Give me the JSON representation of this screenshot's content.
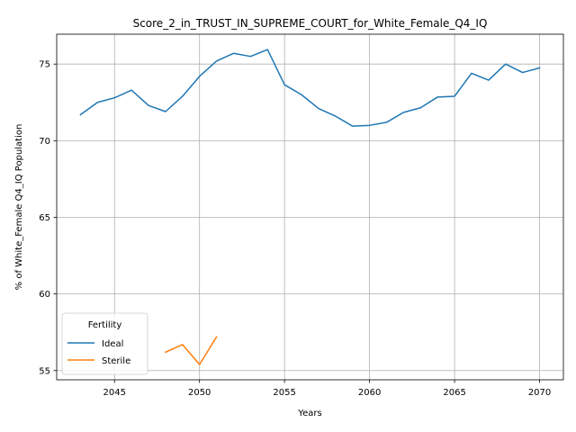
{
  "chart_data": {
    "type": "line",
    "title": "Score_2_in_TRUST_IN_SUPREME_COURT_for_White_Female_Q4_IQ",
    "xlabel": "Years",
    "ylabel": "% of White_Female Q4_IQ Population",
    "xlim": [
      2041.6,
      2071.4
    ],
    "ylim": [
      54.4,
      76.95
    ],
    "xticks": [
      2045,
      2050,
      2055,
      2060,
      2065,
      2070
    ],
    "yticks": [
      55,
      60,
      65,
      70,
      75
    ],
    "grid": true,
    "legend": {
      "title": "Fertility",
      "placement": "lower-left"
    },
    "series": [
      {
        "name": "Ideal",
        "color": "#1f77b4",
        "x": [
          2043,
          2044,
          2045,
          2046,
          2047,
          2048,
          2049,
          2050,
          2051,
          2052,
          2053,
          2054,
          2055,
          2056,
          2057,
          2058,
          2059,
          2060,
          2061,
          2062,
          2063,
          2064,
          2065,
          2066,
          2067,
          2068,
          2069,
          2070
        ],
        "y": [
          71.7,
          72.5,
          72.8,
          73.3,
          72.3,
          71.9,
          72.9,
          74.2,
          75.2,
          75.7,
          75.5,
          75.95,
          73.65,
          73.0,
          72.1,
          71.6,
          70.95,
          71.0,
          71.2,
          71.85,
          72.15,
          72.85,
          72.9,
          74.4,
          73.95,
          75.0,
          74.45,
          74.75
        ]
      },
      {
        "name": "Sterile",
        "color": "#ff7f0e",
        "x": [
          2048,
          2049,
          2050,
          2051
        ],
        "y": [
          56.2,
          56.7,
          55.4,
          57.2
        ]
      }
    ]
  }
}
